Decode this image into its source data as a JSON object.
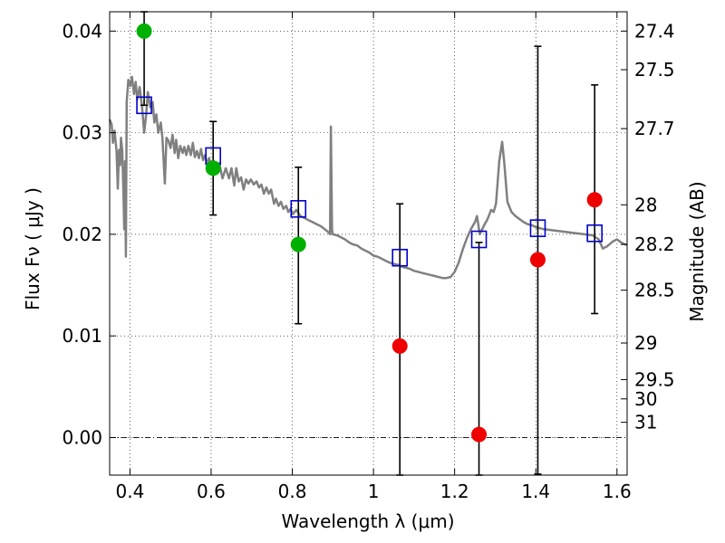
{
  "chart_data": {
    "type": "scatter",
    "title": "",
    "xlabel": "Wavelength  λ (μm)",
    "ylabel": "Flux  Fν  ( μJy )",
    "y2label": "Magnitude (AB)",
    "xlim": [
      0.35,
      1.625
    ],
    "ylim": [
      -0.0037,
      0.0419
    ],
    "grid": true,
    "x_ticks": [
      {
        "value": 0.4,
        "label": "0.4"
      },
      {
        "value": 0.6,
        "label": "0.6"
      },
      {
        "value": 0.8,
        "label": "0.8"
      },
      {
        "value": 1.0,
        "label": "1"
      },
      {
        "value": 1.2,
        "label": "1.2"
      },
      {
        "value": 1.4,
        "label": "1.4"
      },
      {
        "value": 1.6,
        "label": "1.6"
      }
    ],
    "y_ticks": [
      {
        "value": 0.0,
        "label": "0.00"
      },
      {
        "value": 0.01,
        "label": "0.01"
      },
      {
        "value": 0.02,
        "label": "0.02"
      },
      {
        "value": 0.03,
        "label": "0.03"
      },
      {
        "value": 0.04,
        "label": "0.04"
      }
    ],
    "y2_ticks": [
      {
        "flux": 0.04,
        "label": "27.4"
      },
      {
        "flux": 0.0362,
        "label": "27.5"
      },
      {
        "flux": 0.0304,
        "label": "27.7"
      },
      {
        "flux": 0.0229,
        "label": "28"
      },
      {
        "flux": 0.019,
        "label": "28.2"
      },
      {
        "flux": 0.0145,
        "label": "28.5"
      },
      {
        "flux": 0.0093,
        "label": "29"
      },
      {
        "flux": 0.0057,
        "label": "29.5"
      },
      {
        "flux": 0.0038,
        "label": "30"
      },
      {
        "flux": 0.0015,
        "label": "31"
      }
    ],
    "model_spectrum": {
      "color": "#808080",
      "points": [
        [
          0.35,
          0.0313
        ],
        [
          0.355,
          0.0308
        ],
        [
          0.358,
          0.029
        ],
        [
          0.362,
          0.0302
        ],
        [
          0.367,
          0.0282
        ],
        [
          0.37,
          0.0245
        ],
        [
          0.373,
          0.0283
        ],
        [
          0.376,
          0.0268
        ],
        [
          0.378,
          0.0295
        ],
        [
          0.381,
          0.0282
        ],
        [
          0.384,
          0.0242
        ],
        [
          0.386,
          0.0205
        ],
        [
          0.388,
          0.0272
        ],
        [
          0.39,
          0.0178
        ],
        [
          0.392,
          0.033
        ],
        [
          0.396,
          0.0352
        ],
        [
          0.401,
          0.0346
        ],
        [
          0.405,
          0.0355
        ],
        [
          0.41,
          0.0338
        ],
        [
          0.414,
          0.035
        ],
        [
          0.418,
          0.0333
        ],
        [
          0.424,
          0.0345
        ],
        [
          0.43,
          0.0325
        ],
        [
          0.435,
          0.03
        ],
        [
          0.44,
          0.0318
        ],
        [
          0.444,
          0.034
        ],
        [
          0.45,
          0.0325
        ],
        [
          0.456,
          0.033
        ],
        [
          0.46,
          0.031
        ],
        [
          0.465,
          0.0318
        ],
        [
          0.47,
          0.03
        ],
        [
          0.476,
          0.031
        ],
        [
          0.48,
          0.0295
        ],
        [
          0.486,
          0.025
        ],
        [
          0.49,
          0.0295
        ],
        [
          0.495,
          0.0292
        ],
        [
          0.5,
          0.0285
        ],
        [
          0.505,
          0.0298
        ],
        [
          0.51,
          0.028
        ],
        [
          0.514,
          0.0293
        ],
        [
          0.519,
          0.0275
        ],
        [
          0.524,
          0.0287
        ],
        [
          0.53,
          0.028
        ],
        [
          0.534,
          0.0286
        ],
        [
          0.539,
          0.0278
        ],
        [
          0.544,
          0.0287
        ],
        [
          0.55,
          0.0278
        ],
        [
          0.555,
          0.029
        ],
        [
          0.56,
          0.0276
        ],
        [
          0.565,
          0.0282
        ],
        [
          0.57,
          0.0275
        ],
        [
          0.575,
          0.0284
        ],
        [
          0.58,
          0.0273
        ],
        [
          0.585,
          0.0278
        ],
        [
          0.59,
          0.0269
        ],
        [
          0.595,
          0.0275
        ],
        [
          0.6,
          0.0266
        ],
        [
          0.606,
          0.0272
        ],
        [
          0.612,
          0.0265
        ],
        [
          0.62,
          0.027
        ],
        [
          0.628,
          0.0255
        ],
        [
          0.636,
          0.0265
        ],
        [
          0.644,
          0.0255
        ],
        [
          0.65,
          0.0265
        ],
        [
          0.657,
          0.0248
        ],
        [
          0.662,
          0.0265
        ],
        [
          0.668,
          0.0252
        ],
        [
          0.674,
          0.0256
        ],
        [
          0.68,
          0.0244
        ],
        [
          0.686,
          0.0254
        ],
        [
          0.692,
          0.025
        ],
        [
          0.698,
          0.0254
        ],
        [
          0.705,
          0.0249
        ],
        [
          0.712,
          0.0252
        ],
        [
          0.718,
          0.0246
        ],
        [
          0.724,
          0.0249
        ],
        [
          0.73,
          0.024
        ],
        [
          0.736,
          0.0246
        ],
        [
          0.742,
          0.024
        ],
        [
          0.748,
          0.0244
        ],
        [
          0.755,
          0.023
        ],
        [
          0.76,
          0.0235
        ],
        [
          0.766,
          0.0228
        ],
        [
          0.772,
          0.0232
        ],
        [
          0.778,
          0.0225
        ],
        [
          0.785,
          0.0228
        ],
        [
          0.79,
          0.0222
        ],
        [
          0.796,
          0.0225
        ],
        [
          0.802,
          0.022
        ],
        [
          0.81,
          0.0224
        ],
        [
          0.82,
          0.0218
        ],
        [
          0.83,
          0.0216
        ],
        [
          0.84,
          0.0214
        ],
        [
          0.85,
          0.0212
        ],
        [
          0.86,
          0.021
        ],
        [
          0.87,
          0.0208
        ],
        [
          0.88,
          0.0205
        ],
        [
          0.889,
          0.0202
        ],
        [
          0.893,
          0.02
        ],
        [
          0.895,
          0.0306
        ],
        [
          0.898,
          0.0204
        ],
        [
          0.9,
          0.02
        ],
        [
          0.91,
          0.0199
        ],
        [
          0.92,
          0.0197
        ],
        [
          0.93,
          0.0195
        ],
        [
          0.94,
          0.0192
        ],
        [
          0.95,
          0.019
        ],
        [
          0.96,
          0.0189
        ],
        [
          0.97,
          0.0186
        ],
        [
          0.98,
          0.0184
        ],
        [
          0.99,
          0.0182
        ],
        [
          1.0,
          0.0179
        ],
        [
          1.01,
          0.0178
        ],
        [
          1.02,
          0.0176
        ],
        [
          1.03,
          0.0174
        ],
        [
          1.04,
          0.0172
        ],
        [
          1.05,
          0.0171
        ],
        [
          1.06,
          0.017
        ],
        [
          1.07,
          0.0168
        ],
        [
          1.08,
          0.0167
        ],
        [
          1.09,
          0.0166
        ],
        [
          1.1,
          0.0164
        ],
        [
          1.11,
          0.0163
        ],
        [
          1.12,
          0.0162
        ],
        [
          1.13,
          0.0161
        ],
        [
          1.14,
          0.016
        ],
        [
          1.15,
          0.0159
        ],
        [
          1.16,
          0.0158
        ],
        [
          1.17,
          0.0157
        ],
        [
          1.18,
          0.0157
        ],
        [
          1.19,
          0.0158
        ],
        [
          1.2,
          0.0163
        ],
        [
          1.21,
          0.0172
        ],
        [
          1.22,
          0.0185
        ],
        [
          1.23,
          0.0196
        ],
        [
          1.24,
          0.0205
        ],
        [
          1.25,
          0.0212
        ],
        [
          1.255,
          0.0218
        ],
        [
          1.262,
          0.02
        ],
        [
          1.268,
          0.0205
        ],
        [
          1.274,
          0.021
        ],
        [
          1.28,
          0.0214
        ],
        [
          1.286,
          0.022
        ],
        [
          1.29,
          0.0224
        ],
        [
          1.296,
          0.0222
        ],
        [
          1.302,
          0.023
        ],
        [
          1.31,
          0.0272
        ],
        [
          1.317,
          0.0291
        ],
        [
          1.322,
          0.0272
        ],
        [
          1.33,
          0.0232
        ],
        [
          1.34,
          0.0222
        ],
        [
          1.35,
          0.0218
        ],
        [
          1.36,
          0.0215
        ],
        [
          1.37,
          0.0212
        ],
        [
          1.38,
          0.021
        ],
        [
          1.39,
          0.0209
        ],
        [
          1.4,
          0.0207
        ],
        [
          1.41,
          0.0206
        ],
        [
          1.42,
          0.0205
        ],
        [
          1.44,
          0.0204
        ],
        [
          1.46,
          0.0203
        ],
        [
          1.48,
          0.0202
        ],
        [
          1.5,
          0.0201
        ],
        [
          1.52,
          0.02
        ],
        [
          1.54,
          0.0199
        ],
        [
          1.555,
          0.0195
        ],
        [
          1.565,
          0.0186
        ],
        [
          1.575,
          0.0188
        ],
        [
          1.59,
          0.0193
        ],
        [
          1.6,
          0.0195
        ],
        [
          1.61,
          0.0192
        ],
        [
          1.62,
          0.019
        ],
        [
          1.625,
          0.019
        ]
      ]
    },
    "model_photometry": {
      "marker": "open-square",
      "color": "#0000cc",
      "points": [
        {
          "x": 0.435,
          "y": 0.0327
        },
        {
          "x": 0.605,
          "y": 0.0277
        },
        {
          "x": 0.815,
          "y": 0.0225
        },
        {
          "x": 1.065,
          "y": 0.0177
        },
        {
          "x": 1.26,
          "y": 0.0195
        },
        {
          "x": 1.405,
          "y": 0.0206
        },
        {
          "x": 1.545,
          "y": 0.0201
        }
      ]
    },
    "observed_flux_errorbars": {
      "color": "#000000",
      "bars": [
        {
          "x": 0.435,
          "low": 0.0327,
          "high": 0.0419
        },
        {
          "x": 0.605,
          "low": 0.0219,
          "high": 0.0311
        },
        {
          "x": 0.815,
          "low": 0.0112,
          "high": 0.0266
        },
        {
          "x": 1.065,
          "low": -0.0037,
          "high": 0.023
        },
        {
          "x": 1.26,
          "low": -0.0037,
          "high": 0.0192
        },
        {
          "x": 1.405,
          "low": -0.0036,
          "high": 0.0385
        },
        {
          "x": 1.545,
          "low": 0.0122,
          "high": 0.0347
        }
      ]
    },
    "series": [
      {
        "color": "#00b000",
        "points": [
          {
            "x": 0.435,
            "y": 0.04
          },
          {
            "x": 0.605,
            "y": 0.0265
          },
          {
            "x": 0.815,
            "y": 0.019
          }
        ]
      },
      {
        "color": "#ee0000",
        "points": [
          {
            "x": 1.065,
            "y": 0.009
          },
          {
            "x": 1.26,
            "y": 0.0003
          },
          {
            "x": 1.405,
            "y": 0.0175
          },
          {
            "x": 1.545,
            "y": 0.0234
          }
        ]
      }
    ]
  }
}
